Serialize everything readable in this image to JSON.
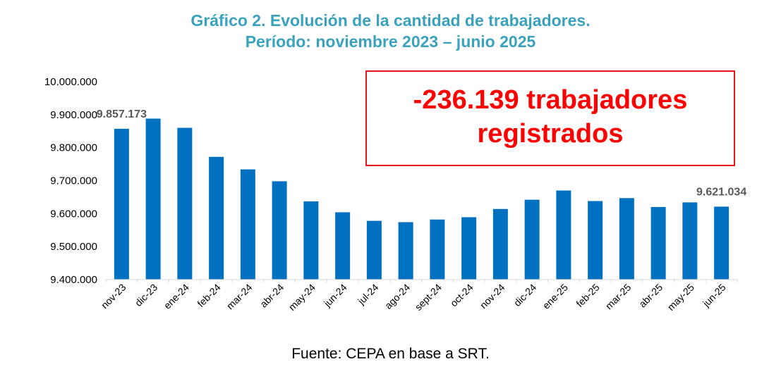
{
  "chart_data": {
    "type": "bar",
    "title": "Gráfico 2. Evolución de la cantidad de trabajadores.",
    "subtitle": "Período: noviembre 2023 – junio 2025",
    "categories": [
      "nov-23",
      "dic-23",
      "ene-24",
      "feb-24",
      "mar-24",
      "abr-24",
      "may-24",
      "jun-24",
      "jul-24",
      "ago-24",
      "sept-24",
      "oct-24",
      "nov-24",
      "dic-24",
      "ene-25",
      "feb-25",
      "mar-25",
      "abr-25",
      "may-25",
      "jun-25"
    ],
    "series": [
      {
        "name": "Trabajadores registrados",
        "values": [
          9857173,
          9888000,
          9860000,
          9772000,
          9734000,
          9698000,
          9637000,
          9604000,
          9578000,
          9574000,
          9582000,
          9589000,
          9614000,
          9642000,
          9670000,
          9638000,
          9647000,
          9620000,
          9634000,
          9621034
        ]
      }
    ],
    "ylim": [
      9400000,
      10000000
    ],
    "yticks": [
      9400000,
      9500000,
      9600000,
      9700000,
      9800000,
      9900000,
      10000000
    ],
    "ytick_labels": [
      "9.400.000",
      "9.500.000",
      "9.600.000",
      "9.700.000",
      "9.800.000",
      "9.900.000",
      "10.000.000"
    ],
    "data_labels": [
      {
        "index": 0,
        "text": "9.857.173"
      },
      {
        "index": 19,
        "text": "9.621.034"
      }
    ],
    "bar_color": "#0070c0",
    "grid": false
  },
  "annotation": {
    "line1": "-236.139 trabajadores",
    "line2": "registrados",
    "color": "#ff0000"
  },
  "source": "Fuente: CEPA en base a SRT."
}
